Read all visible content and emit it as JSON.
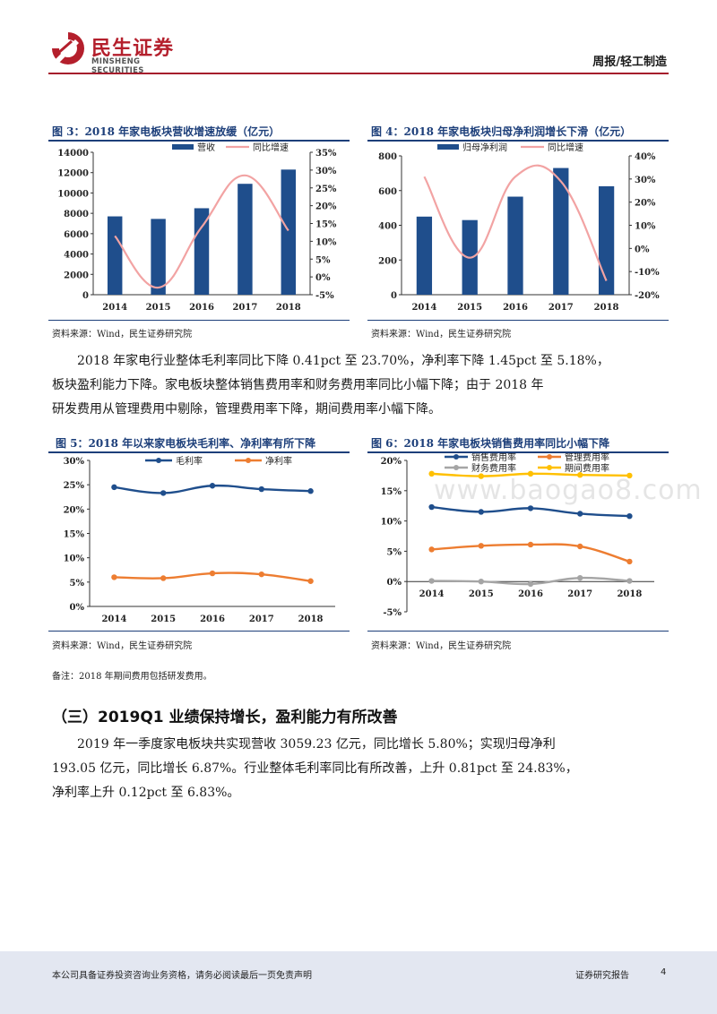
{
  "header": {
    "logo_cn": "民生证券",
    "logo_en": "MINSHENG SECURITIES",
    "category": "周报/轻工制造"
  },
  "figures": {
    "fig3": {
      "title": "图 3：2018 年家电板块营收增速放缓（亿元）",
      "source": "资料来源：Wind，民生证券研究院"
    },
    "fig4": {
      "title": "图 4：2018 年家电板块归母净利润增长下滑（亿元）",
      "source": "资料来源：Wind，民生证券研究院"
    },
    "fig5": {
      "title": "图 5：2018 年以来家电板块毛利率、净利率有所下降",
      "source": "资料来源：Wind，民生证券研究院"
    },
    "fig6": {
      "title": "图 6：2018 年家电板块销售费用率同比小幅下降",
      "source": "资料来源：Wind，民生证券研究院"
    }
  },
  "para1": {
    "line1": "2018 年家电行业整体毛利率同比下降 0.41pct 至 23.70%，净利率下降 1.45pct 至 5.18%，",
    "line2": "板块盈利能力下降。家电板块整体销售费用率和财务费用率同比小幅下降；由于 2018 年",
    "line3": "研发费用从管理费用中剔除，管理费用率下降，期间费用率小幅下降。"
  },
  "note": "备注：2018 年期间费用包括研发费用。",
  "section_title": "（三）2019Q1 业绩保持增长，盈利能力有所改善",
  "para2": {
    "line1": "2019 年一季度家电板块共实现营收 3059.23 亿元，同比增长 5.80%；实现归母净利",
    "line2": "193.05 亿元，同比增长 6.87%。行业整体毛利率同比有所改善，上升 0.81pct 至 24.83%，",
    "line3": "净利率上升 0.12pct 至 6.83%。"
  },
  "watermark": "www.baogao8.com",
  "footer": {
    "disclaimer": "本公司具备证券投资咨询业务资格，请务必阅读最后一页免责声明",
    "doc_type": "证券研究报告",
    "page": "4"
  },
  "chart_data": [
    {
      "id": "fig3",
      "type": "bar+line",
      "categories": [
        "2014",
        "2015",
        "2016",
        "2017",
        "2018"
      ],
      "series": [
        {
          "name": "营收",
          "axis": "left",
          "type": "bar",
          "color": "#1f4e8c",
          "values": [
            7700,
            7450,
            8500,
            10900,
            12300
          ]
        },
        {
          "name": "同比增速",
          "axis": "right",
          "type": "line",
          "color": "#f2a3a3",
          "values": [
            0.115,
            -0.03,
            0.14,
            0.285,
            0.13
          ]
        }
      ],
      "y_left": {
        "min": 0,
        "max": 14000,
        "ticks": [
          "0",
          "2000",
          "4000",
          "6000",
          "8000",
          "10000",
          "12000",
          "14000"
        ]
      },
      "y_right": {
        "min": -0.05,
        "max": 0.35,
        "ticks": [
          "-5%",
          "0%",
          "5%",
          "10%",
          "15%",
          "20%",
          "25%",
          "30%",
          "35%"
        ]
      },
      "legend": "top"
    },
    {
      "id": "fig4",
      "type": "bar+line",
      "categories": [
        "2014",
        "2015",
        "2016",
        "2017",
        "2018"
      ],
      "series": [
        {
          "name": "归母净利润",
          "axis": "left",
          "type": "bar",
          "color": "#1f4e8c",
          "values": [
            450,
            430,
            565,
            730,
            625
          ]
        },
        {
          "name": "同比增速",
          "axis": "right",
          "type": "line",
          "color": "#f2a3a3",
          "values": [
            0.31,
            -0.04,
            0.31,
            0.29,
            -0.14
          ]
        }
      ],
      "y_left": {
        "min": 0,
        "max": 800,
        "ticks": [
          "0",
          "200",
          "400",
          "600",
          "800"
        ]
      },
      "y_right": {
        "min": -0.2,
        "max": 0.4,
        "ticks": [
          "-20%",
          "-10%",
          "0%",
          "10%",
          "20%",
          "30%",
          "40%"
        ]
      },
      "legend": "top"
    },
    {
      "id": "fig5",
      "type": "line",
      "categories": [
        "2014",
        "2015",
        "2016",
        "2017",
        "2018"
      ],
      "series": [
        {
          "name": "毛利率",
          "color": "#1f4e8c",
          "values": [
            24.5,
            23.3,
            24.8,
            24.1,
            23.7
          ]
        },
        {
          "name": "净利率",
          "color": "#ed7d31",
          "values": [
            6.0,
            5.8,
            6.8,
            6.6,
            5.2
          ]
        }
      ],
      "y": {
        "min": 0,
        "max": 30,
        "ticks": [
          "0%",
          "5%",
          "10%",
          "15%",
          "20%",
          "25%",
          "30%"
        ]
      },
      "legend": "top"
    },
    {
      "id": "fig6",
      "type": "line",
      "categories": [
        "2014",
        "2015",
        "2016",
        "2017",
        "2018"
      ],
      "series": [
        {
          "name": "销售费用率",
          "color": "#1f4e8c",
          "values": [
            12.3,
            11.5,
            12.1,
            11.2,
            10.8
          ]
        },
        {
          "name": "管理费用率",
          "color": "#ed7d31",
          "values": [
            5.3,
            5.9,
            6.1,
            5.8,
            3.3
          ]
        },
        {
          "name": "财务费用率",
          "color": "#a5a5a5",
          "values": [
            0.1,
            0.0,
            -0.4,
            0.6,
            0.1
          ]
        },
        {
          "name": "期间费用率",
          "color": "#ffc000",
          "values": [
            17.8,
            17.4,
            17.8,
            17.6,
            17.5
          ]
        }
      ],
      "y": {
        "min": -5,
        "max": 20,
        "ticks": [
          "-5%",
          "0%",
          "5%",
          "10%",
          "15%",
          "20%"
        ]
      },
      "legend": "top"
    }
  ]
}
